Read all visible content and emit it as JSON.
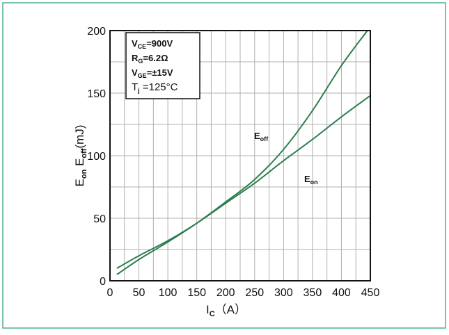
{
  "chart_data": {
    "type": "line",
    "xlabel": {
      "main": "I",
      "sub": "C",
      "unit": "（A）"
    },
    "ylabel": {
      "e1": "E",
      "s1": "on",
      "e2": " E",
      "s2": "off",
      "unit": "(mJ)"
    },
    "xlim": [
      0,
      450
    ],
    "ylim": [
      0,
      200
    ],
    "x_ticks": [
      0,
      50,
      100,
      150,
      200,
      250,
      300,
      350,
      400,
      450
    ],
    "y_ticks": [
      0,
      50,
      100,
      150,
      200
    ],
    "grid": true,
    "colors": {
      "curve": "#2e7d4f",
      "frame": "#4caf8a",
      "grid": "#b0b0b0"
    },
    "conditions": [
      {
        "pre": "V",
        "sub": "CE",
        "post": "=900V",
        "bold": true
      },
      {
        "pre": "R",
        "sub": "G",
        "post": "=6.2Ω",
        "bold": true
      },
      {
        "pre": "V",
        "sub": "GE",
        "post": "=±15V",
        "bold": true
      },
      {
        "pre": "T",
        "sub": "j",
        "post": " =125°C",
        "bold": false
      }
    ],
    "series": [
      {
        "name": "Eoff",
        "label_main": "E",
        "label_sub": "off",
        "x": [
          12,
          50,
          100,
          150,
          200,
          250,
          300,
          350,
          400,
          445
        ],
        "y": [
          5,
          17,
          31,
          46,
          63,
          81,
          105,
          136,
          172,
          200
        ]
      },
      {
        "name": "Eon",
        "label_main": "E",
        "label_sub": "on",
        "x": [
          12,
          50,
          100,
          150,
          200,
          250,
          300,
          350,
          400,
          450
        ],
        "y": [
          10,
          20,
          32,
          46,
          62,
          78,
          96,
          113,
          131,
          148
        ]
      }
    ]
  }
}
